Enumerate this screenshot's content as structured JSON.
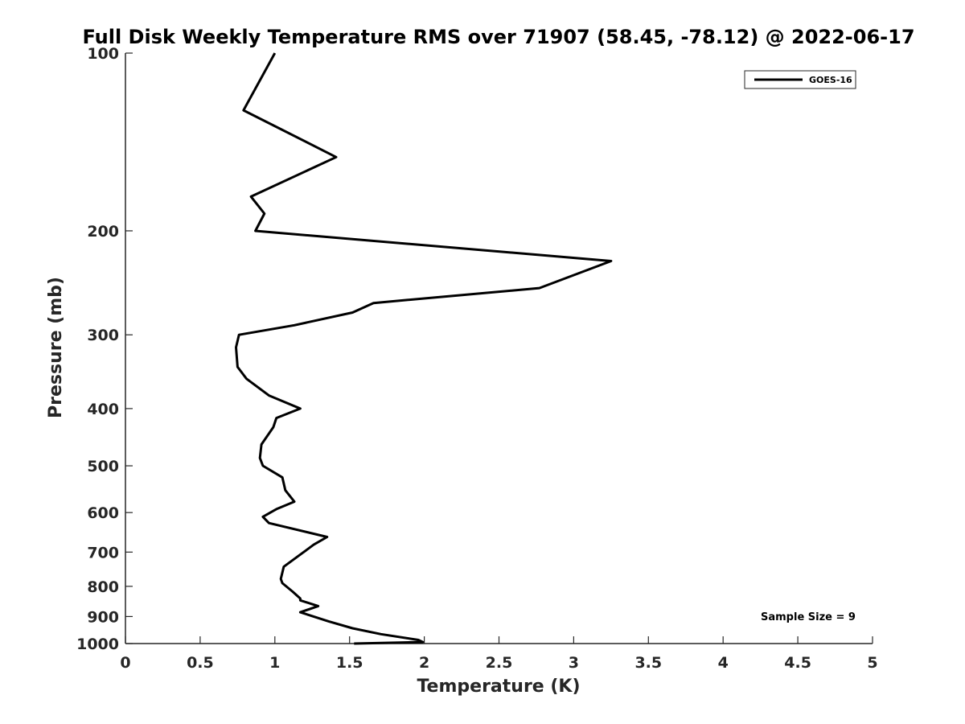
{
  "chart_data": {
    "type": "line",
    "title": "Full Disk Weekly Temperature RMS over 71907 (58.45, -78.12) @ 2022-06-17",
    "xlabel": "Temperature (K)",
    "ylabel": "Pressure (mb)",
    "xlim": [
      0,
      5
    ],
    "ylim": [
      100,
      1000
    ],
    "y_scale": "log",
    "y_reversed": true,
    "grid": false,
    "legend_position": "top-right",
    "xticks": [
      0,
      0.5,
      1,
      1.5,
      2,
      2.5,
      3,
      3.5,
      4,
      4.5,
      5
    ],
    "xtick_labels": [
      "0",
      "0.5",
      "1",
      "1.5",
      "2",
      "2.5",
      "3",
      "3.5",
      "4",
      "4.5",
      "5"
    ],
    "yticks": [
      100,
      200,
      300,
      400,
      500,
      600,
      700,
      800,
      900,
      1000
    ],
    "ytick_labels": [
      "100",
      "200",
      "300",
      "400",
      "500",
      "600",
      "700",
      "800",
      "900",
      "1000"
    ],
    "series": [
      {
        "name": "GOES-16",
        "color": "#000000",
        "x": [
          1.0,
          0.79,
          1.41,
          0.84,
          0.93,
          0.87,
          3.25,
          2.77,
          1.66,
          1.52,
          1.13,
          0.76,
          0.74,
          0.75,
          0.81,
          0.96,
          1.17,
          1.01,
          0.99,
          0.91,
          0.9,
          0.92,
          1.05,
          1.07,
          1.13,
          1.01,
          0.92,
          0.96,
          1.35,
          1.26,
          1.18,
          1.06,
          1.04,
          1.05,
          1.12,
          1.17,
          1.17,
          1.29,
          1.17,
          1.36,
          1.52,
          1.71,
          1.96,
          1.99,
          1.53
        ],
        "y": [
          100,
          125,
          150,
          175,
          187,
          200,
          225,
          250,
          265,
          275,
          289,
          300,
          315,
          340,
          356,
          380,
          400,
          415,
          430,
          460,
          485,
          500,
          523,
          550,
          575,
          592,
          610,
          625,
          660,
          680,
          704,
          741,
          777,
          790,
          817,
          839,
          845,
          864,
          885,
          917,
          942,
          964,
          986,
          994,
          1000
        ]
      }
    ],
    "annotations": [
      "Sample Size = 9"
    ]
  }
}
